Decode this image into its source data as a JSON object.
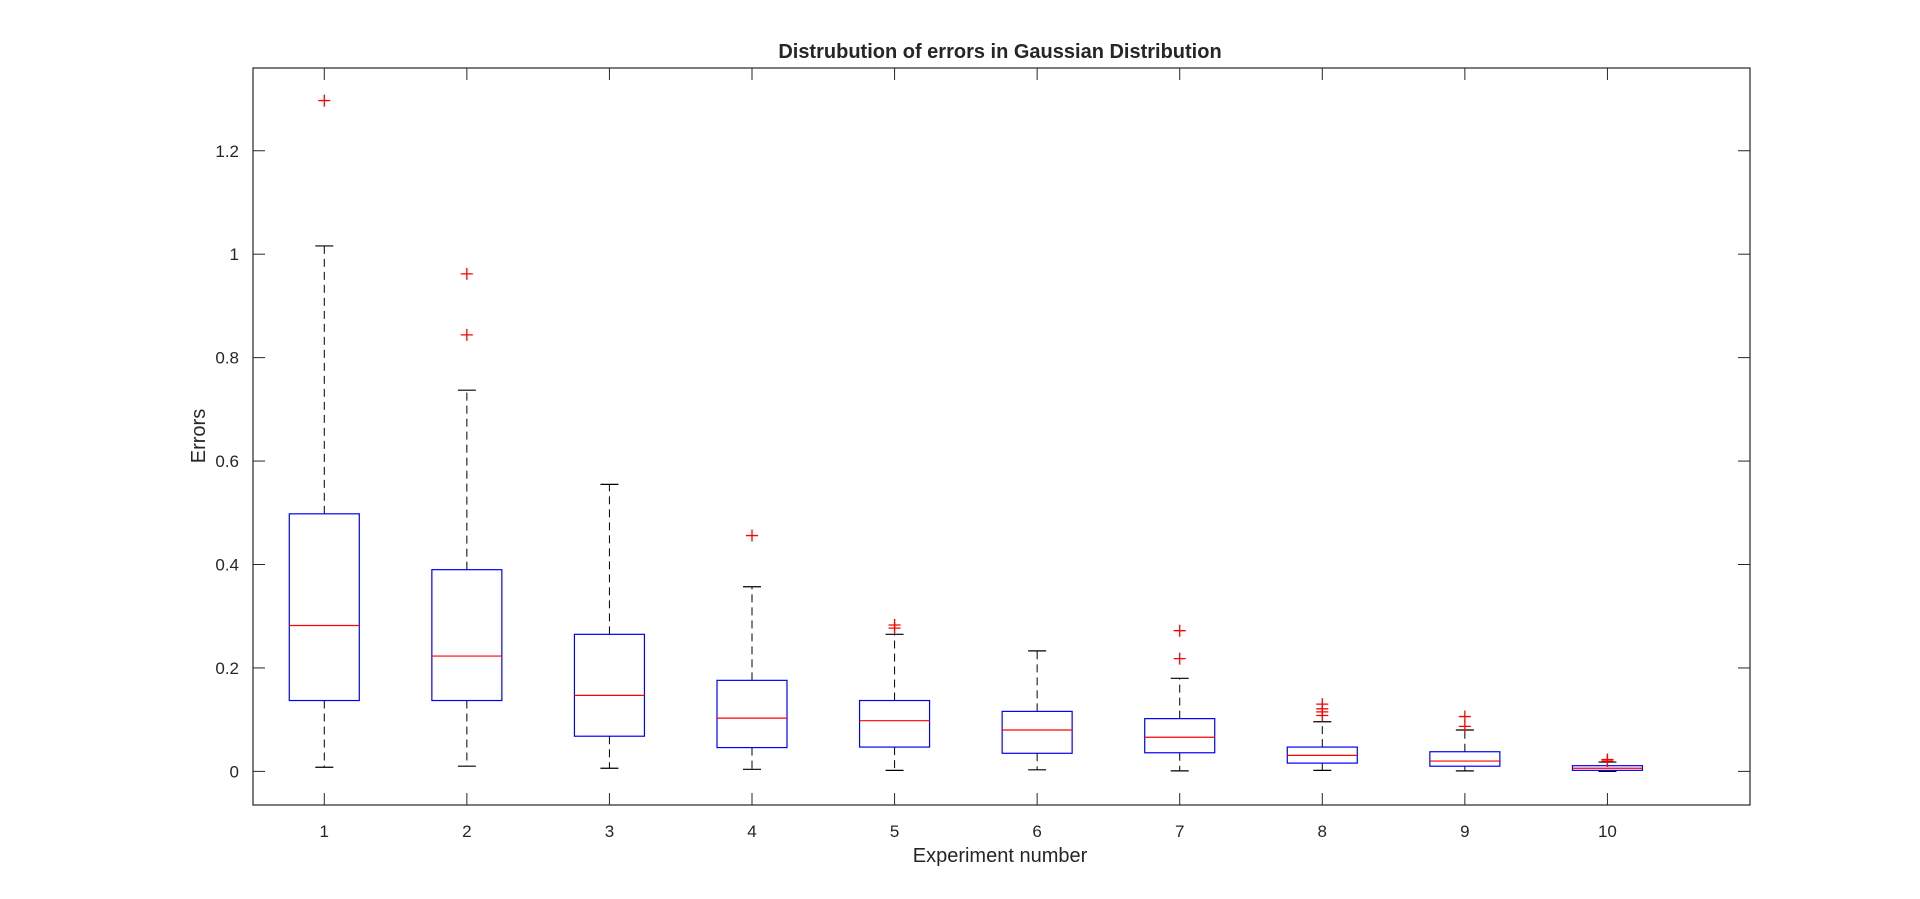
{
  "chart_data": {
    "type": "boxplot",
    "title": "Distrubution of errors in Gaussian Distribution",
    "xlabel": "Experiment number",
    "ylabel": "Errors",
    "ylim": [
      -0.065,
      1.36
    ],
    "xlim": [
      0.5,
      11
    ],
    "yticks": [
      "0",
      "0.2",
      "0.4",
      "0.6",
      "0.8",
      "1",
      "1.2"
    ],
    "ytick_values": [
      0,
      0.2,
      0.4,
      0.6,
      0.8,
      1.0,
      1.2
    ],
    "categories": [
      "1",
      "2",
      "3",
      "4",
      "5",
      "6",
      "7",
      "8",
      "9",
      "10"
    ],
    "boxes": [
      {
        "label": "1",
        "whisker_low": 0.008,
        "q1": 0.137,
        "median": 0.282,
        "q3": 0.498,
        "whisker_high": 1.016,
        "outliers": [
          1.297
        ]
      },
      {
        "label": "2",
        "whisker_low": 0.01,
        "q1": 0.137,
        "median": 0.223,
        "q3": 0.39,
        "whisker_high": 0.737,
        "outliers": [
          0.844,
          0.962
        ]
      },
      {
        "label": "3",
        "whisker_low": 0.006,
        "q1": 0.068,
        "median": 0.147,
        "q3": 0.265,
        "whisker_high": 0.555,
        "outliers": []
      },
      {
        "label": "4",
        "whisker_low": 0.004,
        "q1": 0.046,
        "median": 0.103,
        "q3": 0.176,
        "whisker_high": 0.357,
        "outliers": [
          0.456
        ]
      },
      {
        "label": "5",
        "whisker_low": 0.002,
        "q1": 0.047,
        "median": 0.098,
        "q3": 0.137,
        "whisker_high": 0.265,
        "outliers": [
          0.277,
          0.283
        ]
      },
      {
        "label": "6",
        "whisker_low": 0.003,
        "q1": 0.035,
        "median": 0.08,
        "q3": 0.116,
        "whisker_high": 0.233,
        "outliers": []
      },
      {
        "label": "7",
        "whisker_low": 0.001,
        "q1": 0.036,
        "median": 0.066,
        "q3": 0.102,
        "whisker_high": 0.18,
        "outliers": [
          0.218,
          0.272
        ]
      },
      {
        "label": "8",
        "whisker_low": 0.002,
        "q1": 0.016,
        "median": 0.031,
        "q3": 0.047,
        "whisker_high": 0.096,
        "outliers": [
          0.108,
          0.115,
          0.121,
          0.13
        ]
      },
      {
        "label": "9",
        "whisker_low": 0.001,
        "q1": 0.01,
        "median": 0.02,
        "q3": 0.038,
        "whisker_high": 0.08,
        "outliers": [
          0.087,
          0.106
        ]
      },
      {
        "label": "10",
        "whisker_low": 0.0,
        "q1": 0.002,
        "median": 0.006,
        "q3": 0.011,
        "whisker_high": 0.018,
        "outliers": [
          0.02,
          0.023
        ]
      }
    ],
    "colors": {
      "box": "#0000ff",
      "median": "#ff0000",
      "outlier": "#ff0000",
      "whisker": "#000000",
      "axes": "#262626"
    },
    "grid": false,
    "legend": "none"
  }
}
